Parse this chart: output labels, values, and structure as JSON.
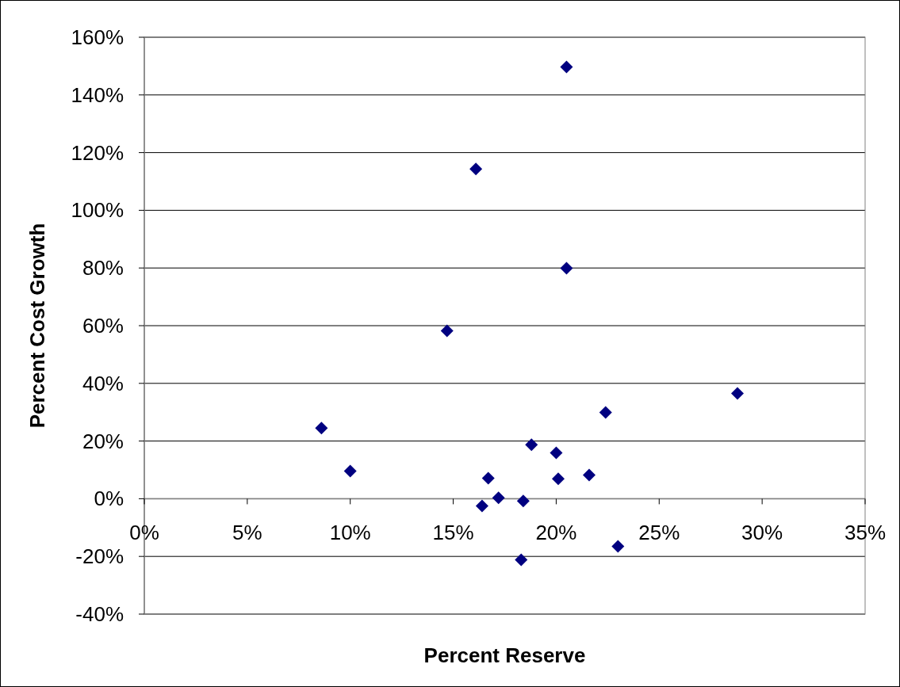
{
  "chart_data": {
    "type": "scatter",
    "xlabel": "Percent Reserve",
    "ylabel": "Percent Cost Growth",
    "x": [
      8.6,
      10.0,
      14.7,
      16.1,
      16.4,
      16.7,
      17.2,
      18.4,
      18.3,
      18.8,
      20.0,
      20.1,
      20.5,
      20.5,
      21.6,
      22.4,
      23.0,
      28.8
    ],
    "series": [
      {
        "color": "#000080",
        "values": [
          24.5,
          9.6,
          58.2,
          114.3,
          -2.5,
          7.1,
          0.3,
          -0.8,
          -21.2,
          18.7,
          15.9,
          6.9,
          149.7,
          79.9,
          8.2,
          29.9,
          -16.5,
          36.5
        ]
      }
    ],
    "marker": "diamond",
    "grid": "y",
    "xlim": [
      0,
      35
    ],
    "xticks": [
      {
        "value": 0,
        "label": "0%"
      },
      {
        "value": 5,
        "label": "5%"
      },
      {
        "value": 10,
        "label": "10%"
      },
      {
        "value": 15,
        "label": "15%"
      },
      {
        "value": 20,
        "label": "20%"
      },
      {
        "value": 25,
        "label": "25%"
      },
      {
        "value": 30,
        "label": "30%"
      },
      {
        "value": 35,
        "label": "35%"
      }
    ],
    "ylim": [
      -40,
      160
    ],
    "yticks": [
      {
        "value": -40,
        "label": "-40%"
      },
      {
        "value": -20,
        "label": "-20%"
      },
      {
        "value": 0,
        "label": "0%"
      },
      {
        "value": 20,
        "label": "20%"
      },
      {
        "value": 40,
        "label": "40%"
      },
      {
        "value": 60,
        "label": "60%"
      },
      {
        "value": 80,
        "label": "80%"
      },
      {
        "value": 100,
        "label": "100%"
      },
      {
        "value": 120,
        "label": "120%"
      },
      {
        "value": 140,
        "label": "140%"
      },
      {
        "value": 160,
        "label": "160%"
      }
    ]
  }
}
